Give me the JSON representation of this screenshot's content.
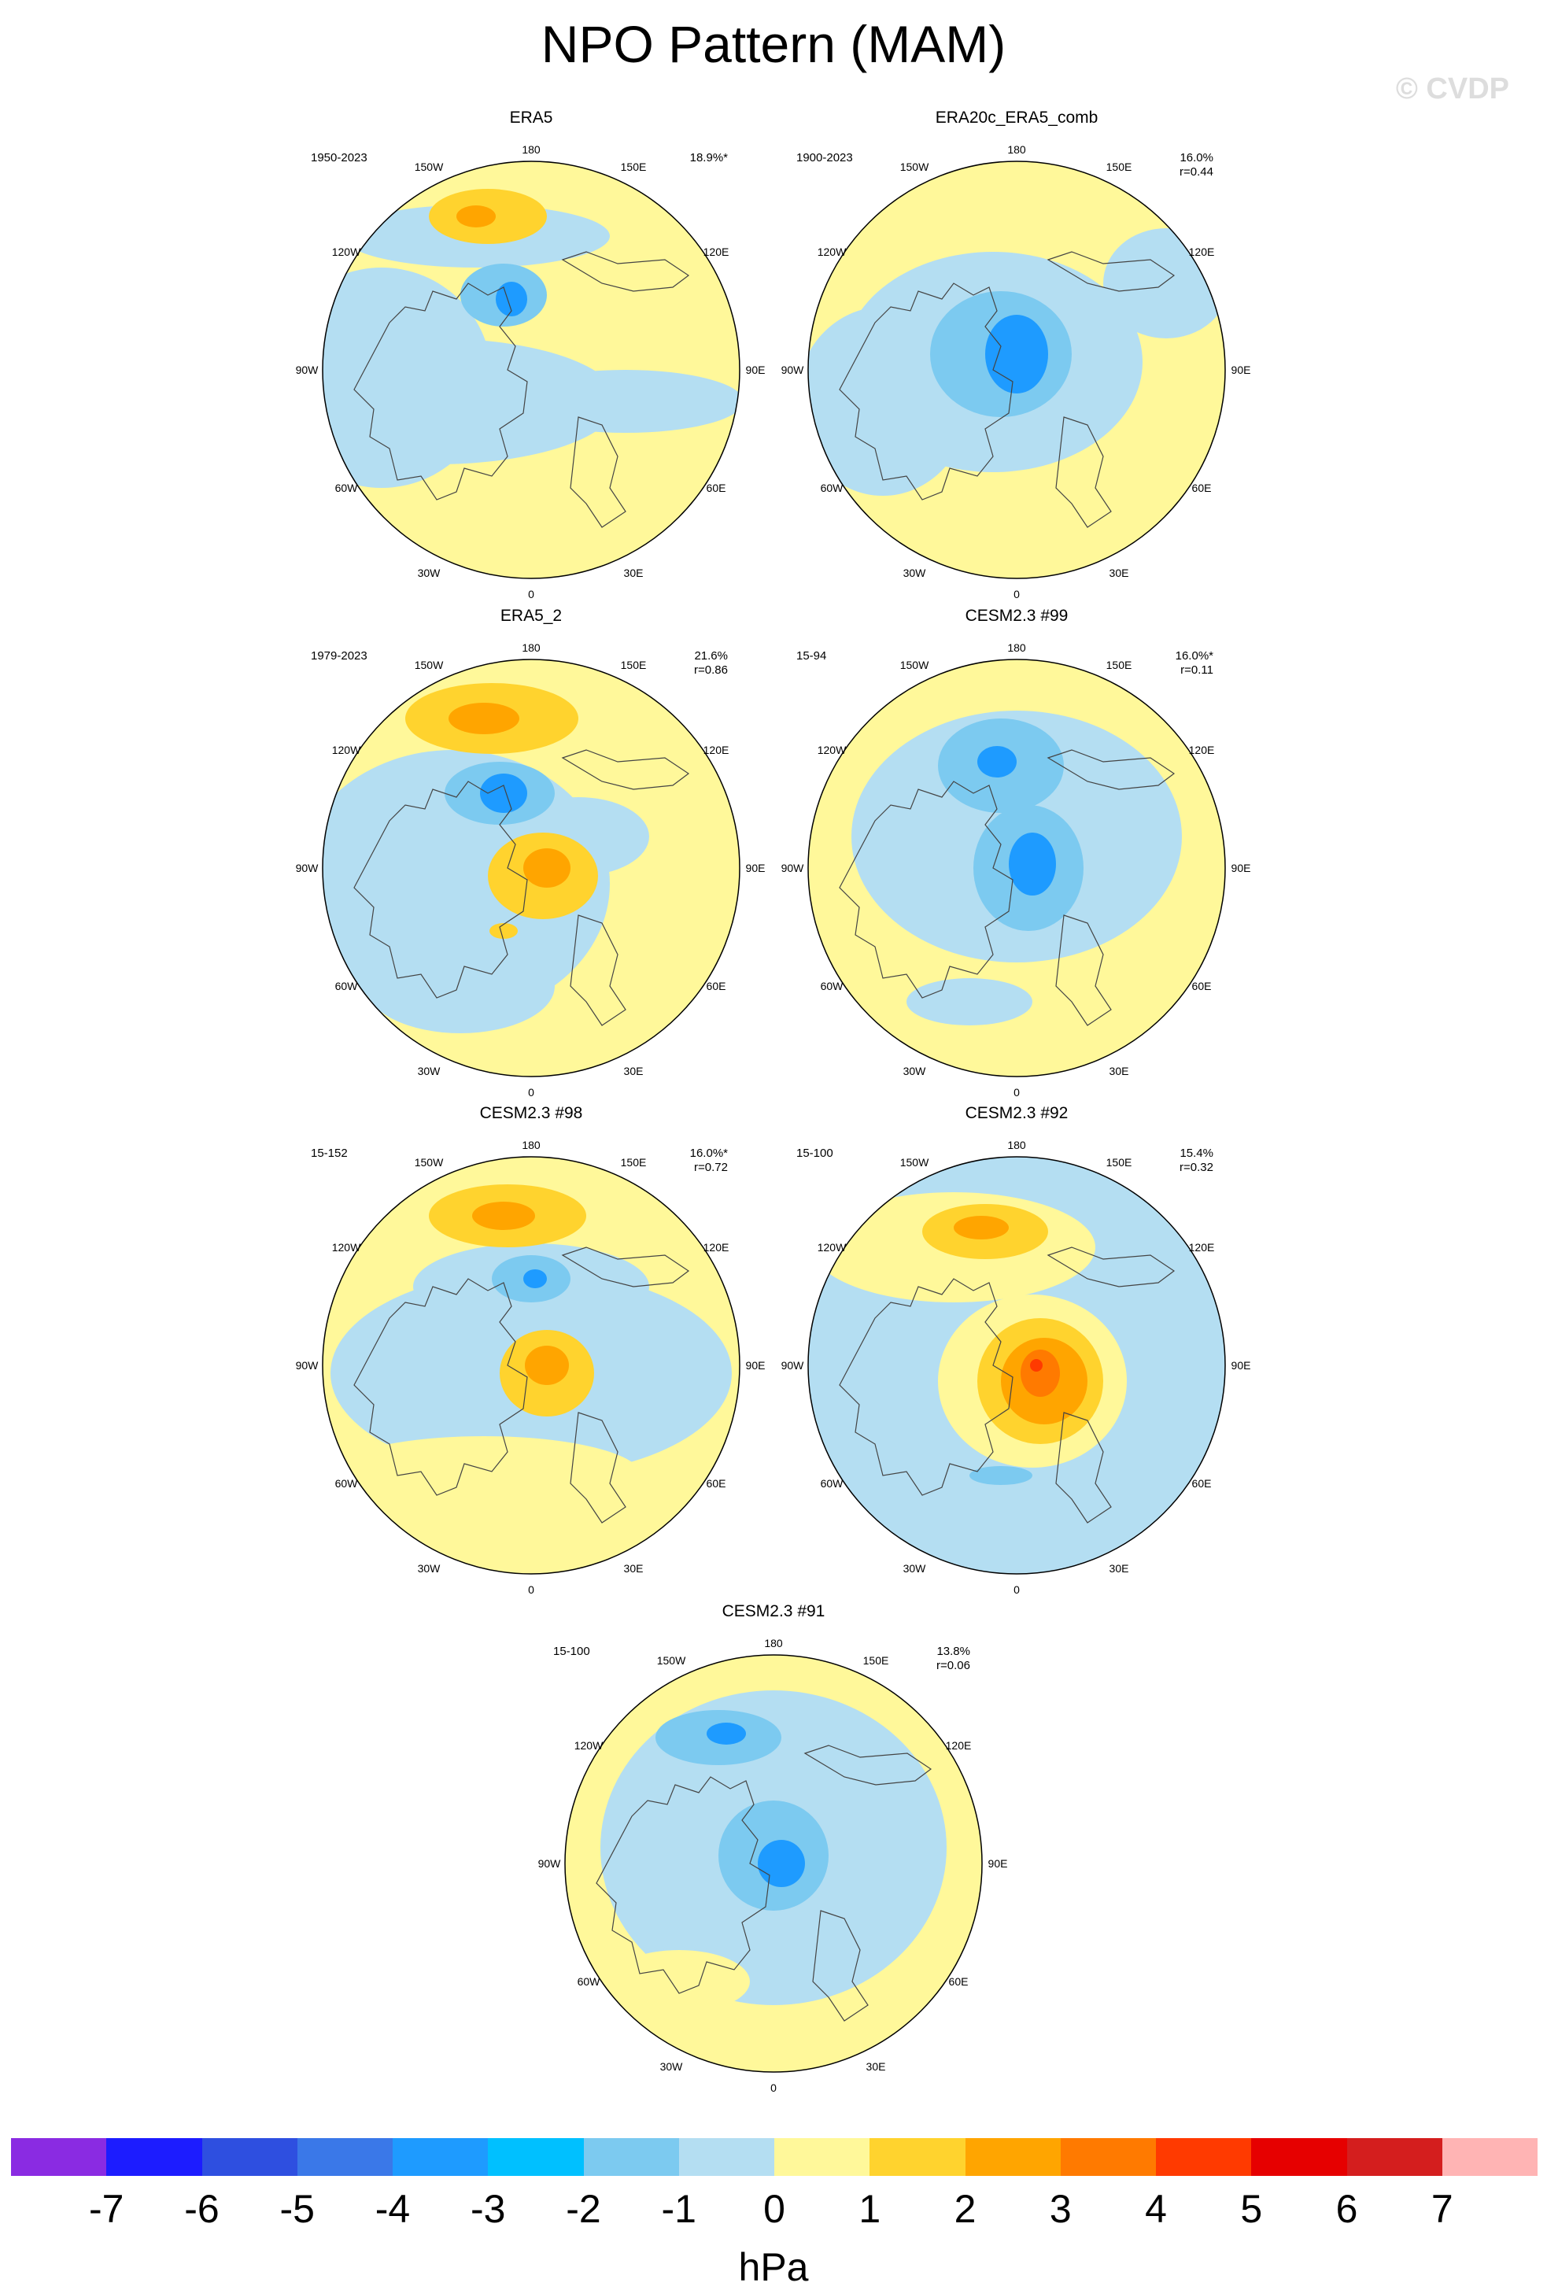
{
  "header": {
    "title": "NPO Pattern (MAM)",
    "watermark": "© CVDP"
  },
  "longitude_labels": {
    "top": "180",
    "bottom": "0",
    "upper_left": "150W",
    "upper_right": "150E",
    "mid_upper_left": "120W",
    "mid_upper_right": "120E",
    "left": "90W",
    "right": "90E",
    "mid_lower_left": "60W",
    "mid_lower_right": "60E",
    "lower_left": "30W",
    "lower_right": "30E"
  },
  "panels": [
    {
      "title": "ERA5",
      "period": "1950-2023",
      "percent": "18.9%*",
      "corr": ""
    },
    {
      "title": "ERA20c_ERA5_comb",
      "period": "1900-2023",
      "percent": "16.0%",
      "corr": "r=0.44"
    },
    {
      "title": "ERA5_2",
      "period": "1979-2023",
      "percent": "21.6%",
      "corr": "r=0.86"
    },
    {
      "title": "CESM2.3 #99",
      "period": "15-94",
      "percent": "16.0%*",
      "corr": "r=0.11"
    },
    {
      "title": "CESM2.3 #98",
      "period": "15-152",
      "percent": "16.0%*",
      "corr": "r=0.72"
    },
    {
      "title": "CESM2.3 #92",
      "period": "15-100",
      "percent": "15.4%",
      "corr": "r=0.32"
    },
    {
      "title": "CESM2.3 #91",
      "period": "15-100",
      "percent": "13.8%",
      "corr": "r=0.06"
    }
  ],
  "colorbar": {
    "units": "hPa",
    "labels": [
      "-7",
      "-6",
      "-5",
      "-4",
      "-3",
      "-2",
      "-1",
      "0",
      "1",
      "2",
      "3",
      "4",
      "5",
      "6",
      "7"
    ],
    "colors": [
      "#8a2be2",
      "#1c1cff",
      "#2e4fe0",
      "#3a78e8",
      "#1e9bff",
      "#00c0ff",
      "#7ccaf0",
      "#b4def2",
      "#fff89a",
      "#ffd32e",
      "#ffa500",
      "#ff7a00",
      "#ff3a00",
      "#e60000",
      "#d41e1e",
      "#ffb4b4"
    ]
  }
}
